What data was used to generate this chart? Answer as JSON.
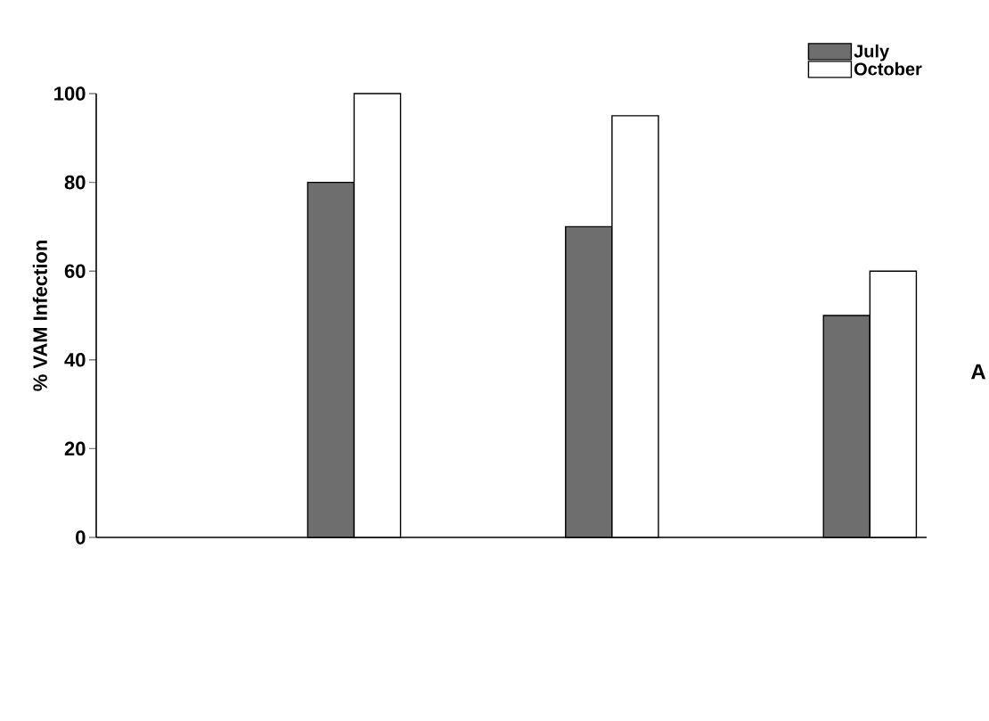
{
  "chart_data": {
    "type": "bar",
    "ylabel": "% VAM Infection",
    "categories": [
      null,
      null,
      null
    ],
    "series": [
      {
        "name": "July",
        "color": "#6e6e6e",
        "values": [
          80,
          70,
          50
        ]
      },
      {
        "name": "October",
        "color": "#ffffff",
        "values": [
          100,
          95,
          60
        ]
      }
    ],
    "ylim": [
      0,
      100
    ],
    "yticks": [
      0,
      20,
      40,
      60,
      80,
      100
    ],
    "annotations": [
      "A"
    ],
    "legend": "top right",
    "grid": false
  }
}
